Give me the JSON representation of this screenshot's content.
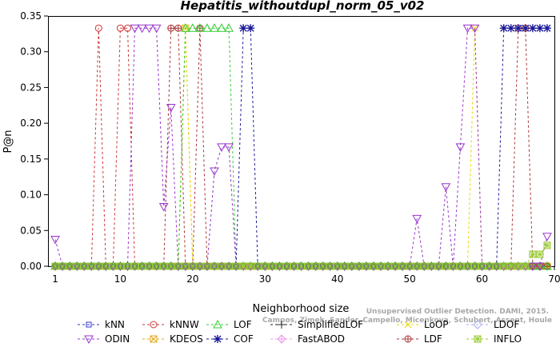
{
  "chart_data": {
    "type": "line",
    "title": "Hepatitis_withoutdupl_norm_05_v02",
    "xlabel": "Neighborhood size",
    "ylabel": "P@n",
    "xlim": [
      0,
      70
    ],
    "ylim": [
      0,
      0.35
    ],
    "xticks": [
      1,
      10,
      20,
      30,
      40,
      50,
      60,
      70
    ],
    "yticks": [
      0.0,
      0.05,
      0.1,
      0.15,
      0.2,
      0.25,
      0.3,
      0.35
    ],
    "grid": false,
    "legend_position": "bottom",
    "watermark": [
      "Unsupervised Outlier Detection. DAMI, 2015.",
      "Campos, Zimek, Sander, Campello, Micenkova, Schubert, Assent, Houle"
    ],
    "series": [
      {
        "name": "kNN",
        "color": "#3333cc",
        "marker": "square",
        "values": [
          0,
          0,
          0,
          0,
          0,
          0,
          0,
          0,
          0,
          0,
          0,
          0,
          0,
          0,
          0,
          0,
          0,
          0,
          0,
          0,
          0,
          0,
          0,
          0,
          0,
          0,
          0,
          0,
          0,
          0,
          0,
          0,
          0,
          0,
          0,
          0,
          0,
          0,
          0,
          0,
          0,
          0,
          0,
          0,
          0,
          0,
          0,
          0,
          0,
          0,
          0,
          0,
          0,
          0,
          0,
          0,
          0,
          0,
          0,
          0,
          0,
          0,
          0,
          0,
          0,
          0,
          0,
          0,
          0
        ]
      },
      {
        "name": "ODIN",
        "color": "#9933cc",
        "marker": "triangle-down",
        "values": [
          0.0375,
          0,
          0,
          0,
          0,
          0,
          0,
          0,
          0,
          0,
          0,
          0.333,
          0.333,
          0.333,
          0.333,
          0.0833,
          0.222,
          0,
          0,
          0,
          0,
          0,
          0.133,
          0.1667,
          0.1667,
          0,
          0,
          0,
          0,
          0,
          0,
          0,
          0,
          0,
          0,
          0,
          0,
          0,
          0,
          0,
          0,
          0,
          0,
          0,
          0,
          0,
          0,
          0,
          0,
          0,
          0.0667,
          0,
          0,
          0,
          0.111,
          0,
          0.1667,
          0.333,
          0.333,
          0,
          0,
          0,
          0,
          0,
          0,
          0,
          0,
          0,
          0.0417
        ]
      },
      {
        "name": "kNNW",
        "color": "#cc3333",
        "marker": "circle",
        "values": [
          0,
          0,
          0,
          0,
          0,
          0,
          0.333,
          0,
          0,
          0.333,
          0.333,
          0,
          0,
          0,
          0,
          0,
          0,
          0,
          0,
          0,
          0,
          0,
          0,
          0,
          0,
          0,
          0,
          0,
          0,
          0,
          0,
          0,
          0,
          0,
          0,
          0,
          0,
          0,
          0,
          0,
          0,
          0,
          0,
          0,
          0,
          0,
          0,
          0,
          0,
          0,
          0,
          0,
          0,
          0,
          0,
          0,
          0,
          0,
          0,
          0,
          0,
          0,
          0,
          0,
          0,
          0,
          0,
          0,
          0
        ]
      },
      {
        "name": "KDEOS",
        "color": "#e6a817",
        "marker": "square-x",
        "values": [
          0,
          0,
          0,
          0,
          0,
          0,
          0,
          0,
          0,
          0,
          0,
          0,
          0,
          0,
          0,
          0,
          0,
          0,
          0.333,
          0,
          0,
          0,
          0,
          0,
          0,
          0,
          0,
          0,
          0,
          0,
          0,
          0,
          0,
          0,
          0,
          0,
          0,
          0,
          0,
          0,
          0,
          0,
          0,
          0,
          0,
          0,
          0,
          0,
          0,
          0,
          0,
          0,
          0,
          0,
          0,
          0,
          0,
          0,
          0,
          0,
          0,
          0,
          0,
          0,
          0,
          0,
          0,
          0,
          0
        ]
      },
      {
        "name": "LOF",
        "color": "#33cc33",
        "marker": "triangle-up",
        "values": [
          0,
          0,
          0,
          0,
          0,
          0,
          0,
          0,
          0,
          0,
          0,
          0,
          0,
          0,
          0,
          0,
          0,
          0,
          0.333,
          0.333,
          0.333,
          0.333,
          0.333,
          0.333,
          0.333,
          0,
          0,
          0,
          0,
          0,
          0,
          0,
          0,
          0,
          0,
          0,
          0,
          0,
          0,
          0,
          0,
          0,
          0,
          0,
          0,
          0,
          0,
          0,
          0,
          0,
          0,
          0,
          0,
          0,
          0,
          0,
          0,
          0,
          0,
          0,
          0,
          0,
          0,
          0,
          0,
          0,
          0,
          0,
          0
        ]
      },
      {
        "name": "COF",
        "color": "#1a1a99",
        "marker": "asterisk",
        "values": [
          0,
          0,
          0,
          0,
          0,
          0,
          0,
          0,
          0,
          0,
          0,
          0,
          0,
          0,
          0,
          0,
          0,
          0,
          0,
          0,
          0,
          0,
          0,
          0,
          0,
          0,
          0.333,
          0.333,
          0,
          0,
          0,
          0,
          0,
          0,
          0,
          0,
          0,
          0,
          0,
          0,
          0,
          0,
          0,
          0,
          0,
          0,
          0,
          0,
          0,
          0,
          0,
          0,
          0,
          0,
          0,
          0,
          0,
          0,
          0,
          0,
          0,
          0,
          0.333,
          0.333,
          0.333,
          0.333,
          0.333,
          0.333,
          0.333
        ]
      },
      {
        "name": "SimplifiedLOF",
        "color": "#222222",
        "marker": "plus",
        "values": [
          0,
          0,
          0,
          0,
          0,
          0,
          0,
          0,
          0,
          0,
          0,
          0,
          0,
          0,
          0,
          0,
          0,
          0,
          0,
          0,
          0,
          0,
          0,
          0,
          0,
          0,
          0,
          0,
          0,
          0,
          0,
          0,
          0,
          0,
          0,
          0,
          0,
          0,
          0,
          0,
          0,
          0,
          0,
          0,
          0,
          0,
          0,
          0,
          0,
          0,
          0,
          0,
          0,
          0,
          0,
          0,
          0,
          0,
          0,
          0,
          0,
          0,
          0,
          0,
          0,
          0,
          0,
          0,
          0
        ]
      },
      {
        "name": "FastABOD",
        "color": "#ee99ee",
        "marker": "diamond-plus",
        "values": [
          0,
          0,
          0,
          0,
          0,
          0,
          0,
          0,
          0,
          0,
          0,
          0,
          0,
          0,
          0,
          0,
          0,
          0,
          0,
          0,
          0,
          0,
          0,
          0,
          0,
          0,
          0,
          0,
          0,
          0,
          0,
          0,
          0,
          0,
          0,
          0,
          0,
          0,
          0,
          0,
          0,
          0,
          0,
          0,
          0,
          0,
          0,
          0,
          0,
          0,
          0,
          0,
          0,
          0,
          0,
          0,
          0,
          0,
          0,
          0,
          0,
          0,
          0,
          0,
          0,
          0,
          0,
          0,
          0
        ]
      },
      {
        "name": "LoOP",
        "color": "#e6d800",
        "marker": "x",
        "values": [
          0,
          0,
          0,
          0,
          0,
          0,
          0,
          0,
          0,
          0,
          0,
          0,
          0,
          0,
          0,
          0,
          0,
          0,
          0.333,
          0,
          0,
          0,
          0,
          0,
          0,
          0,
          0,
          0,
          0,
          0,
          0,
          0,
          0,
          0,
          0,
          0,
          0,
          0,
          0,
          0,
          0,
          0,
          0,
          0,
          0,
          0,
          0,
          0,
          0,
          0,
          0,
          0,
          0,
          0,
          0,
          0,
          0,
          0,
          0.333,
          0,
          0,
          0,
          0,
          0,
          0,
          0,
          0,
          0,
          0
        ]
      },
      {
        "name": "LDF",
        "color": "#aa3333",
        "marker": "circle-plus",
        "values": [
          0,
          0,
          0,
          0,
          0,
          0,
          0,
          0,
          0,
          0,
          0,
          0,
          0,
          0,
          0,
          0,
          0.333,
          0.333,
          0,
          0,
          0.333,
          0,
          0,
          0,
          0,
          0,
          0,
          0,
          0,
          0,
          0,
          0,
          0,
          0,
          0,
          0,
          0,
          0,
          0,
          0,
          0,
          0,
          0,
          0,
          0,
          0,
          0,
          0,
          0,
          0,
          0,
          0,
          0,
          0,
          0,
          0,
          0,
          0,
          0,
          0,
          0,
          0,
          0,
          0,
          0.333,
          0.333,
          0,
          0,
          0
        ]
      },
      {
        "name": "LDOF",
        "color": "#aaaaee",
        "marker": "diamond",
        "values": [
          0,
          0,
          0,
          0,
          0,
          0,
          0,
          0,
          0,
          0,
          0,
          0,
          0,
          0,
          0,
          0,
          0,
          0,
          0,
          0,
          0,
          0,
          0,
          0,
          0,
          0,
          0,
          0,
          0,
          0,
          0,
          0,
          0,
          0,
          0,
          0,
          0,
          0,
          0,
          0,
          0,
          0,
          0,
          0,
          0,
          0,
          0,
          0,
          0,
          0,
          0,
          0,
          0,
          0,
          0,
          0,
          0,
          0,
          0,
          0,
          0,
          0,
          0,
          0,
          0,
          0,
          0,
          0,
          0
        ]
      },
      {
        "name": "INFLO",
        "color": "#99cc33",
        "marker": "square-star",
        "values": [
          0,
          0,
          0,
          0,
          0,
          0,
          0,
          0,
          0,
          0,
          0,
          0,
          0,
          0,
          0,
          0,
          0,
          0,
          0,
          0,
          0,
          0,
          0,
          0,
          0,
          0,
          0,
          0,
          0,
          0,
          0,
          0,
          0,
          0,
          0,
          0,
          0,
          0,
          0,
          0,
          0,
          0,
          0,
          0,
          0,
          0,
          0,
          0,
          0,
          0,
          0,
          0,
          0,
          0,
          0,
          0,
          0,
          0,
          0,
          0,
          0,
          0,
          0,
          0,
          0,
          0,
          0.0167,
          0.0167,
          0.0292
        ]
      }
    ]
  }
}
